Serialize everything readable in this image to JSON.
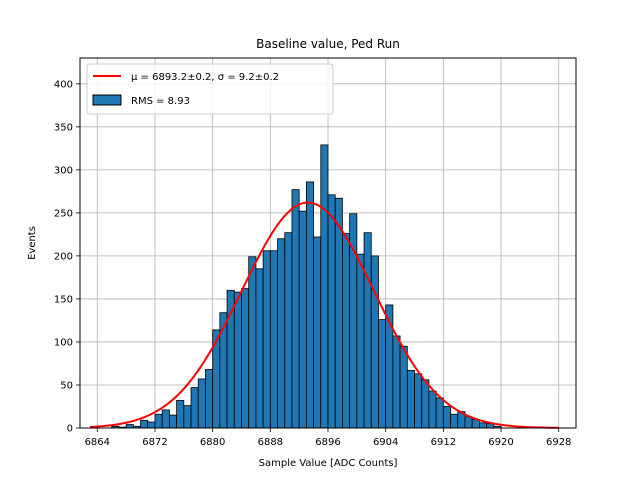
{
  "chart_data": {
    "type": "bar",
    "title": "Baseline value, Ped Run",
    "xlabel": "Sample Value [ADC Counts]",
    "ylabel": "Events",
    "xlim": [
      6861.6,
      6930.4
    ],
    "ylim": [
      0,
      430
    ],
    "xticks": [
      6864,
      6872,
      6880,
      6888,
      6896,
      6904,
      6912,
      6920,
      6928
    ],
    "yticks": [
      0,
      50,
      100,
      150,
      200,
      250,
      300,
      350,
      400
    ],
    "grid": true,
    "legend_position": "top-left",
    "bin_width": 1,
    "histogram": {
      "name": "RMS = 8.93",
      "bin_edges_start": 6866,
      "counts": [
        2,
        1,
        4,
        2,
        9,
        7,
        16,
        21,
        15,
        32,
        26,
        47,
        57,
        68,
        114,
        134,
        160,
        158,
        162,
        199,
        185,
        206,
        206,
        220,
        227,
        277,
        252,
        286,
        222,
        329,
        271,
        267,
        226,
        249,
        202,
        227,
        200,
        126,
        143,
        107,
        95,
        67,
        63,
        56,
        43,
        35,
        25,
        16,
        19,
        13,
        10,
        6,
        5,
        2
      ]
    },
    "fit": {
      "name": "μ = 6893.2±0.2, σ = 9.2±0.2",
      "mu": 6893.2,
      "sigma": 9.2,
      "amplitude": 262,
      "x_range": [
        6863,
        6928
      ]
    },
    "colors": {
      "bars": "#1f77b4",
      "bar_edge": "#000000",
      "fit_line": "#ff0000",
      "grid": "#b0b0b0"
    }
  }
}
